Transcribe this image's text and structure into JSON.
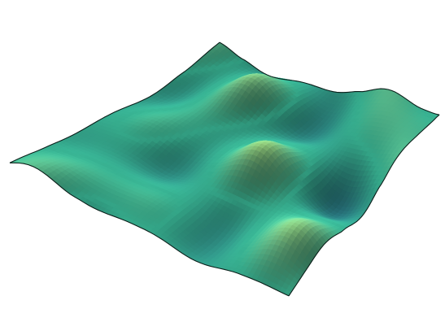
{
  "scene": {
    "subject": "3d-surface-plot",
    "background_color": "#ffffff",
    "colormap": [
      "#1f4f73",
      "#2f8d8c",
      "#3fc8a4",
      "#7fe0a0",
      "#c8ee7a"
    ],
    "edge_color": "#0b1f1a",
    "shading": "smooth",
    "axes_visible": false,
    "grid_visible": false
  }
}
